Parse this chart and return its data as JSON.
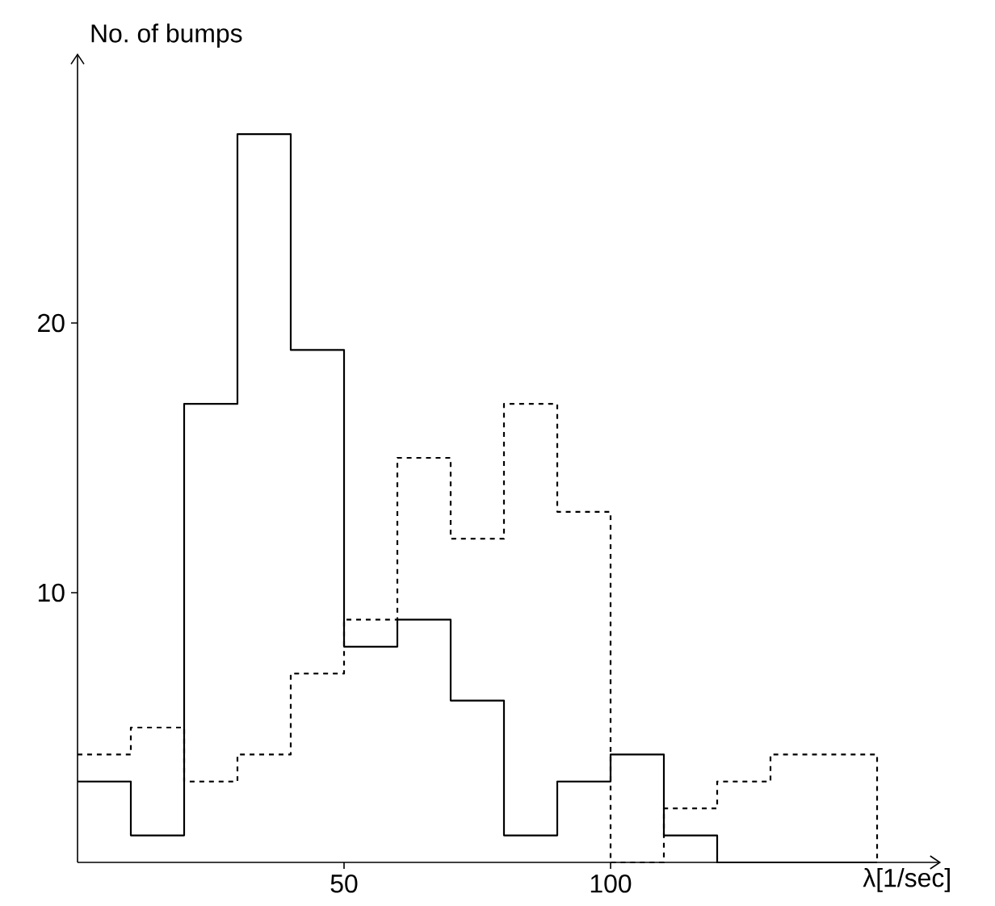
{
  "chart_data": {
    "type": "histogram",
    "xlabel": "λ[1/sec]",
    "ylabel": "No. of bumps",
    "bins": [
      0,
      10,
      20,
      30,
      40,
      50,
      60,
      70,
      80,
      90,
      100,
      110,
      120,
      130,
      140,
      150
    ],
    "series": [
      {
        "color": "#000000",
        "line_style": "solid",
        "values": [
          3,
          1,
          17,
          27,
          19,
          8,
          9,
          6,
          1,
          3,
          4,
          1,
          0,
          0,
          0
        ]
      },
      {
        "color": "#000000",
        "line_style": "dashed",
        "values": [
          4,
          5,
          3,
          4,
          7,
          9,
          15,
          12,
          17,
          13,
          0,
          2,
          3,
          4,
          4
        ]
      }
    ],
    "xlim": [
      0,
      162
    ],
    "ylim": [
      0,
      30
    ],
    "xticks": [
      50,
      100
    ],
    "yticks": [
      10,
      20
    ],
    "grid": false
  }
}
